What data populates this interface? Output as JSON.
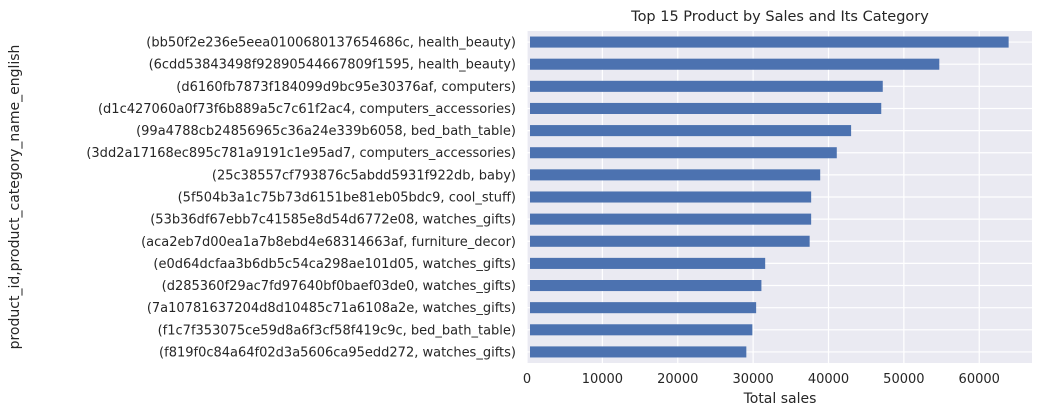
{
  "chart_data": {
    "type": "bar",
    "orientation": "horizontal",
    "title": "Top 15 Product by Sales and Its Category",
    "xlabel": "Total sales",
    "ylabel": "product_id,product_category_name_english",
    "xlim": [
      0,
      67000
    ],
    "xticks": [
      0,
      10000,
      20000,
      30000,
      40000,
      50000,
      60000
    ],
    "xtick_labels": [
      "0",
      "10000",
      "20000",
      "30000",
      "40000",
      "50000",
      "60000"
    ],
    "grid": true,
    "bar_color": "#4c72b0",
    "background_color": "#eaeaf2",
    "categories": [
      "(bb50f2e236e5eea0100680137654686c, health_beauty)",
      "(6cdd53843498f92890544667809f1595, health_beauty)",
      "(d6160fb7873f184099d9bc95e30376af, computers)",
      "(d1c427060a0f73f6b889a5c7c61f2ac4, computers_accessories)",
      "(99a4788cb24856965c36a24e339b6058, bed_bath_table)",
      "(3dd2a17168ec895c781a9191c1e95ad7, computers_accessories)",
      "(25c38557cf793876c5abdd5931f922db, baby)",
      "(5f504b3a1c75b73d6151be81eb05bdc9, cool_stuff)",
      "(53b36df67ebb7c41585e8d54d6772e08, watches_gifts)",
      "(aca2eb7d00ea1a7b8ebd4e68314663af, furniture_decor)",
      "(e0d64dcfaa3b6db5c54ca298ae101d05, watches_gifts)",
      "(d285360f29ac7fd97640bf0baef03de0, watches_gifts)",
      "(7a10781637204d8d10485c71a6108a2e, watches_gifts)",
      "(f1c7f353075ce59d8a6f3cf58f419c9c, bed_bath_table)",
      "(f819f0c84a64f02d3a5606ca95edd272, watches_gifts)"
    ],
    "values": [
      63900,
      54700,
      47200,
      47000,
      43000,
      41100,
      38900,
      37700,
      37700,
      37500,
      31600,
      31100,
      30400,
      29900,
      29100
    ]
  }
}
